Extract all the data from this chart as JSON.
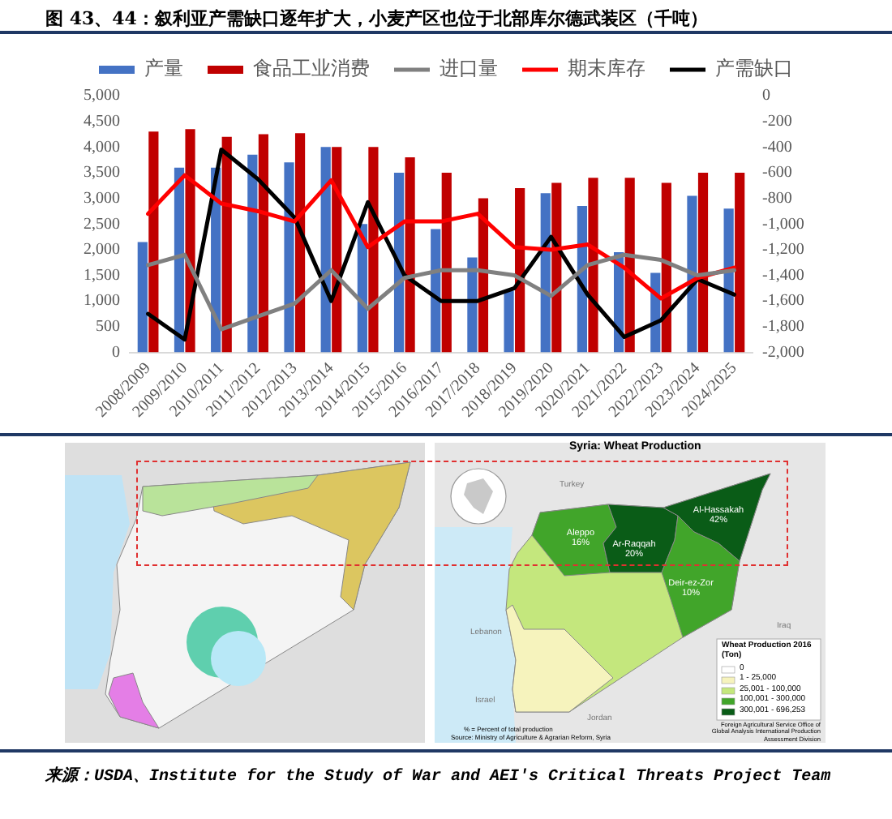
{
  "chart_data": {
    "type": "bar",
    "title": "图 43、44：叙利亚产需缺口逐年扩大，小麦产区也位于北部库尔德武装区（千吨）",
    "categories": [
      "2008/2009",
      "2009/2010",
      "2010/2011",
      "2011/2012",
      "2012/2013",
      "2013/2014",
      "2014/2015",
      "2015/2016",
      "2016/2017",
      "2017/2018",
      "2018/2019",
      "2019/2020",
      "2020/2021",
      "2021/2022",
      "2022/2023",
      "2023/2024",
      "2024/2025"
    ],
    "series": [
      {
        "name": "产量",
        "color": "#4472c4",
        "values": [
          2150,
          3600,
          3600,
          3850,
          3700,
          4000,
          2500,
          3500,
          2400,
          1850,
          1200,
          3100,
          2850,
          1950,
          1550,
          3050,
          2800
        ]
      },
      {
        "name": "食品工业消费",
        "color": "#c00000",
        "values": [
          4300,
          4350,
          4200,
          4250,
          4270,
          4000,
          4000,
          3800,
          3500,
          3000,
          3200,
          3300,
          3400,
          3400,
          3300,
          3500,
          3500
        ]
      },
      {
        "name": "进口量",
        "type": "line",
        "color": "#808080",
        "values": [
          1700,
          1900,
          450,
          700,
          950,
          1600,
          850,
          1450,
          1600,
          1600,
          1500,
          1100,
          1700,
          1900,
          1800,
          1500,
          1600
        ]
      },
      {
        "name": "期末库存",
        "type": "line",
        "color": "#ff0000",
        "values": [
          2700,
          3450,
          2900,
          2750,
          2550,
          3350,
          2050,
          2550,
          2550,
          2700,
          2050,
          2000,
          2100,
          1650,
          1050,
          1450,
          1650
        ]
      },
      {
        "name": "产需缺口",
        "type": "line",
        "color": "#000000",
        "axis": "y2",
        "values": [
          -1700,
          -1900,
          -420,
          -650,
          -950,
          -1600,
          -830,
          -1400,
          -1600,
          -1600,
          -1500,
          -1100,
          -1550,
          -1880,
          -1750,
          -1430,
          -1550
        ]
      }
    ],
    "ylim": [
      0,
      5000
    ],
    "yticks": [
      0,
      500,
      {
        "value": 1000,
        "label": "1,000"
      },
      {
        "value": 1500,
        "label": "1,500"
      },
      {
        "value": 2000,
        "label": "2,000"
      },
      {
        "value": 2500,
        "label": "2,500"
      },
      {
        "value": 3000,
        "label": "3,000"
      },
      {
        "value": 3500,
        "label": "3,500"
      },
      {
        "value": 4000,
        "label": "4,000"
      },
      {
        "value": 4500,
        "label": "4,500"
      },
      {
        "value": 5000,
        "label": "5,000"
      }
    ],
    "y2lim": [
      -2000,
      0
    ],
    "y2ticks": [
      {
        "value": -2000,
        "label": "-2,000"
      },
      {
        "value": -1800,
        "label": "-1,800"
      },
      {
        "value": -1600,
        "label": "-1,600"
      },
      {
        "value": -1400,
        "label": "-1,400"
      },
      {
        "value": -1200,
        "label": "-1,200"
      },
      {
        "value": -1000,
        "label": "-1,000"
      },
      -800,
      -600,
      -400,
      -200,
      0
    ],
    "legend": "top",
    "marker": "none",
    "annotations": [
      "来源：USDA、Institute for the Study of War and AEI's Critical Threats Project Team",
      "Syria: Wheat Production",
      "Aleppo 16%",
      "Ar-Raqqah 20%",
      "Al-Hassakah 42%",
      "Deir-ez-Zor 10%",
      "Wheat Production 2016 (Ton)",
      "0",
      "1 - 25,000",
      "25,001 - 100,000",
      "100,001 - 300,000",
      "300,001 - 696,253",
      "% = Percent of total production",
      "Source: Ministry of Agriculture & Agrarian Reform, Syria",
      "Foreign Agricultural Service Office of Global Analysis International Production Assessment Division",
      "Turkey",
      "Lebanon",
      "Israel",
      "Jordan",
      "Iraq"
    ]
  }
}
